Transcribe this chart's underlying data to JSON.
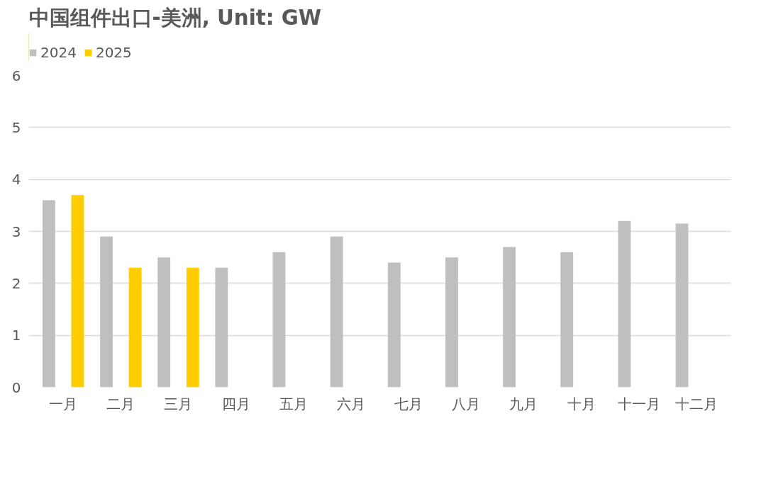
{
  "chart_data": {
    "type": "bar",
    "title": "中国组件出口-美洲, Unit: GW",
    "categories": [
      "一月",
      "二月",
      "三月",
      "四月",
      "五月",
      "六月",
      "七月",
      "八月",
      "九月",
      "十月",
      "十一月",
      "十二月"
    ],
    "series": [
      {
        "name": "2024",
        "color": "#bfbfbf",
        "values": [
          3.6,
          2.9,
          2.5,
          2.3,
          2.6,
          2.9,
          2.4,
          2.5,
          2.7,
          2.6,
          3.2,
          3.15
        ]
      },
      {
        "name": "2025",
        "color": "#ffcc00",
        "values": [
          3.7,
          2.3,
          2.3,
          null,
          null,
          null,
          null,
          null,
          null,
          null,
          null,
          null
        ]
      }
    ],
    "ylim": [
      0,
      6
    ],
    "yticks": [
      0,
      1,
      2,
      3,
      4,
      5,
      6
    ],
    "grid": "y",
    "legend": "top left"
  }
}
